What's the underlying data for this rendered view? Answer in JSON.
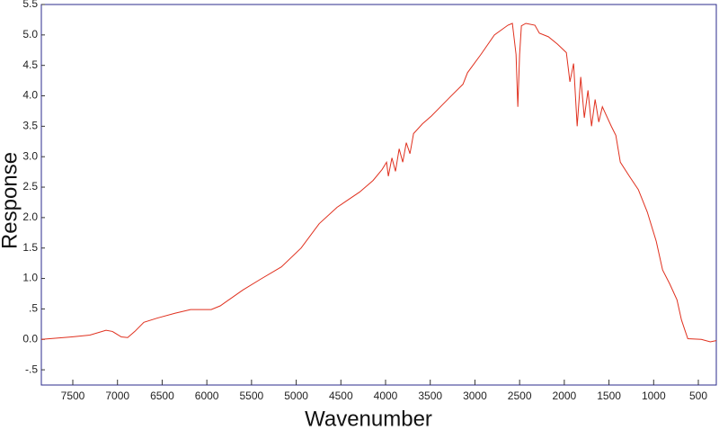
{
  "chart_data": {
    "type": "line",
    "x_label": "Wavenumber",
    "y_label": "Response",
    "xlim": [
      7852,
      299
    ],
    "ylim": [
      -0.75,
      5.5
    ],
    "xticks": [
      7500,
      7000,
      6500,
      6000,
      5500,
      5000,
      4500,
      4000,
      3500,
      3000,
      2500,
      2000,
      1500,
      1000,
      500
    ],
    "yticks": [
      5.5,
      {
        "value": 5,
        "label": "5.0"
      },
      4.5,
      {
        "value": 4,
        "label": "4.0"
      },
      3.5,
      {
        "value": 3,
        "label": "3.0"
      },
      2.5,
      {
        "value": 2,
        "label": "2.0"
      },
      1.5,
      {
        "value": 1,
        "label": "1.0"
      },
      {
        "value": 0.5,
        "label": ".5"
      },
      {
        "value": 0,
        "label": "0.0"
      },
      {
        "value": -0.5,
        "label": "-.5"
      }
    ],
    "color": "#e0301e",
    "x": [
      7852,
      7510,
      7309,
      7128,
      7057,
      6957,
      6886,
      6806,
      6705,
      6554,
      6353,
      6182,
      5951,
      5850,
      5598,
      5397,
      5166,
      4945,
      4743,
      4542,
      4290,
      4140,
      4039,
      3989,
      3969,
      3929,
      3889,
      3848,
      3808,
      3768,
      3727,
      3687,
      3587,
      3486,
      3285,
      3134,
      3083,
      2933,
      2782,
      2631,
      2581,
      2540,
      2520,
      2500,
      2480,
      2430,
      2329,
      2279,
      2178,
      2077,
      1977,
      1937,
      1896,
      1856,
      1816,
      1776,
      1735,
      1695,
      1655,
      1614,
      1574,
      1474,
      1423,
      1373,
      1272,
      1172,
      1071,
      971,
      900,
      820,
      739,
      689,
      618,
      467,
      366,
      300
    ],
    "values": [
      0.0,
      0.04,
      0.07,
      0.15,
      0.13,
      0.04,
      0.03,
      0.13,
      0.28,
      0.35,
      0.43,
      0.49,
      0.49,
      0.55,
      0.81,
      0.99,
      1.19,
      1.5,
      1.9,
      2.17,
      2.42,
      2.61,
      2.79,
      2.91,
      2.68,
      2.98,
      2.76,
      3.13,
      2.91,
      3.23,
      3.05,
      3.38,
      3.54,
      3.67,
      3.97,
      4.19,
      4.38,
      4.68,
      5.0,
      5.16,
      5.19,
      4.68,
      3.82,
      4.68,
      5.15,
      5.19,
      5.16,
      5.03,
      4.97,
      4.85,
      4.71,
      4.23,
      4.53,
      3.5,
      4.31,
      3.64,
      4.09,
      3.5,
      3.94,
      3.57,
      3.82,
      3.5,
      3.35,
      2.91,
      2.68,
      2.46,
      2.09,
      1.61,
      1.14,
      0.91,
      0.65,
      0.32,
      0.01,
      0.0,
      -0.04,
      -0.02
    ]
  }
}
